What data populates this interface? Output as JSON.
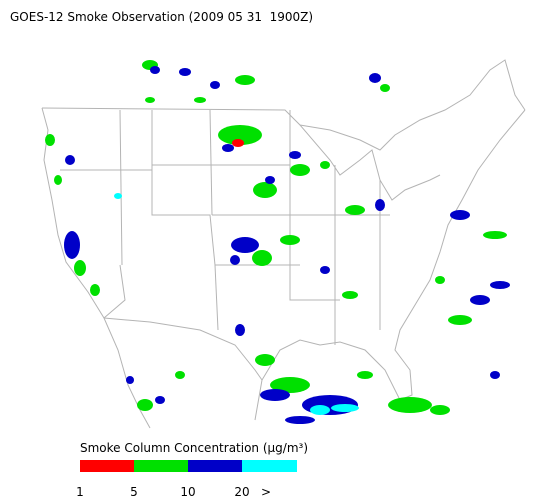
{
  "title": "GOES-12 Smoke Observation (2009 05 31  1900Z)",
  "legend": {
    "title": "Smoke Column Concentration (μg/m³)",
    "ticks": [
      1,
      5,
      10,
      20,
      ">"
    ],
    "colors": [
      "#ff0000",
      "#00e000",
      "#0000c8",
      "#00ffff"
    ]
  }
}
